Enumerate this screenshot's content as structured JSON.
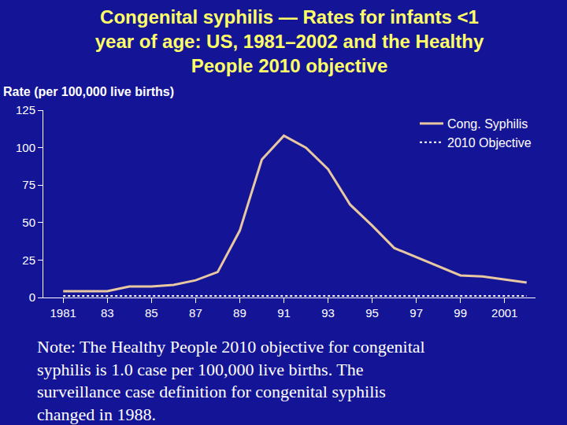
{
  "chart_data": {
    "type": "line",
    "title": "Congenital syphilis — Rates for infants <1 year of age: US, 1981–2002 and the Healthy People 2010 objective",
    "y_label": "Rate (per 100,000 live births)",
    "note": "Note: The Healthy People 2010 objective for congenital syphilis is 1.0 case per 100,000 live births. The surveillance case definition for congenital syphilis changed in 1988.",
    "x": [
      1981,
      1982,
      1983,
      1984,
      1985,
      1986,
      1987,
      1988,
      1989,
      1990,
      1991,
      1992,
      1993,
      1994,
      1995,
      1996,
      1997,
      1998,
      1999,
      2000,
      2001,
      2002
    ],
    "series": [
      {
        "name": "Cong. Syphilis",
        "color": "#e8c8a0",
        "line_style": "solid",
        "values": [
          4.2,
          4.2,
          4.2,
          7.4,
          7.4,
          8.4,
          11.5,
          17,
          44.6,
          92,
          108,
          100,
          85.6,
          62,
          48,
          33,
          27,
          21,
          14.7,
          14,
          12,
          10
        ]
      },
      {
        "name": "2010 Objective",
        "color": "#ffffff",
        "line_style": "dotted",
        "values": [
          1,
          1,
          1,
          1,
          1,
          1,
          1,
          1,
          1,
          1,
          1,
          1,
          1,
          1,
          1,
          1,
          1,
          1,
          1,
          1,
          1,
          1
        ]
      }
    ],
    "xlim": [
      1980.1,
      2002.4
    ],
    "xticks": [
      1981,
      {
        "value": 1983,
        "label": "83"
      },
      {
        "value": 1985,
        "label": "85"
      },
      {
        "value": 1987,
        "label": "87"
      },
      {
        "value": 1989,
        "label": "89"
      },
      {
        "value": 1991,
        "label": "91"
      },
      {
        "value": 1993,
        "label": "93"
      },
      {
        "value": 1995,
        "label": "95"
      },
      {
        "value": 1997,
        "label": "97"
      },
      {
        "value": 1999,
        "label": "99"
      },
      2001
    ],
    "ylim": [
      0,
      125
    ],
    "yticks": [
      0,
      25,
      50,
      75,
      100,
      125
    ],
    "legend": "top-right",
    "grid": false
  }
}
